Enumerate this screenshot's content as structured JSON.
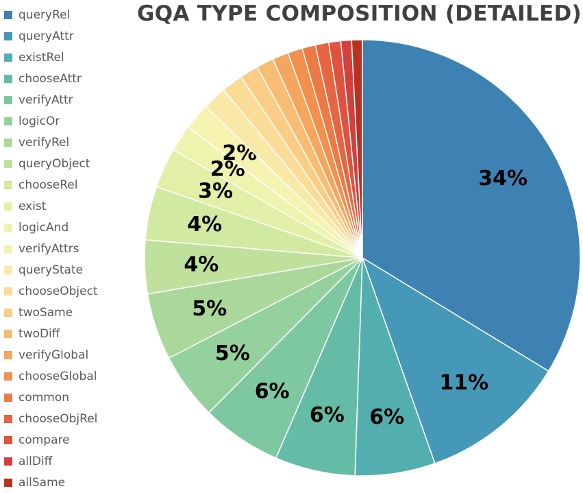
{
  "chart_data": {
    "type": "pie",
    "title": "GQA TYPE COMPOSITION (DETAILED)",
    "legend_position": "left",
    "slices": [
      {
        "name": "queryRel",
        "value": 34,
        "label": "34%",
        "color": "#3e82b4"
      },
      {
        "name": "queryAttr",
        "value": 11,
        "label": "11%",
        "color": "#4698b8"
      },
      {
        "name": "existRel",
        "value": 6,
        "label": "6%",
        "color": "#53aeb0"
      },
      {
        "name": "chooseAttr",
        "value": 6,
        "label": "6%",
        "color": "#65bca6"
      },
      {
        "name": "verifyAttr",
        "value": 6,
        "label": "6%",
        "color": "#7dc8a0"
      },
      {
        "name": "logicOr",
        "value": 5,
        "label": "5%",
        "color": "#94d19c"
      },
      {
        "name": "verifyRel",
        "value": 5,
        "label": "5%",
        "color": "#aad89a"
      },
      {
        "name": "queryObject",
        "value": 4,
        "label": "4%",
        "color": "#bfe19c"
      },
      {
        "name": "chooseRel",
        "value": 4,
        "label": "4%",
        "color": "#d1e9a0"
      },
      {
        "name": "exist",
        "value": 3,
        "label": "3%",
        "color": "#e1f0a6"
      },
      {
        "name": "logicAnd",
        "value": 2,
        "label": "2%",
        "color": "#eef3ae"
      },
      {
        "name": "verifyAttrs",
        "value": 2,
        "label": "2%",
        "color": "#f6f2b0"
      },
      {
        "name": "queryState",
        "value": 1.8,
        "label": "",
        "color": "#f9e9a6"
      },
      {
        "name": "chooseObject",
        "value": 1.6,
        "label": "",
        "color": "#fadc97"
      },
      {
        "name": "twoSame",
        "value": 1.4,
        "label": "",
        "color": "#f9cd85"
      },
      {
        "name": "twoDiff",
        "value": 1.3,
        "label": "",
        "color": "#f8bc72"
      },
      {
        "name": "verifyGlobal",
        "value": 1.2,
        "label": "",
        "color": "#f5a65e"
      },
      {
        "name": "chooseGlobal",
        "value": 1.1,
        "label": "",
        "color": "#f2904e"
      },
      {
        "name": "common",
        "value": 1.0,
        "label": "",
        "color": "#ec7a45"
      },
      {
        "name": "chooseObjRel",
        "value": 1.0,
        "label": "",
        "color": "#e66641"
      },
      {
        "name": "compare",
        "value": 0.9,
        "label": "",
        "color": "#df5240"
      },
      {
        "name": "allDiff",
        "value": 0.8,
        "label": "",
        "color": "#d2403e"
      },
      {
        "name": "allSame",
        "value": 0.8,
        "label": "",
        "color": "#b83222"
      }
    ]
  }
}
